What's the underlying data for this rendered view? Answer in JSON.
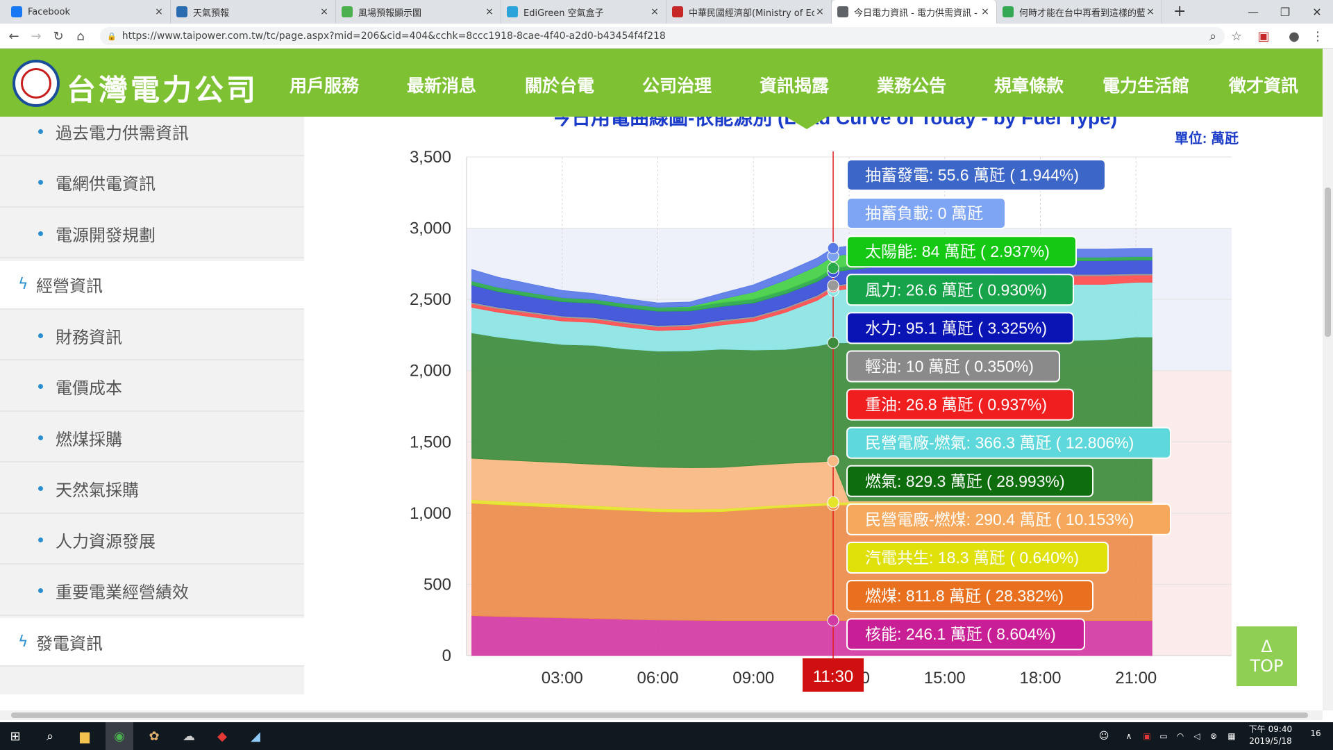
{
  "browser": {
    "tabs": [
      {
        "title": "Facebook",
        "color": "#1877f2"
      },
      {
        "title": "天氣預報",
        "color": "#2b6cb0"
      },
      {
        "title": "風場預報顯示圖",
        "color": "#4caf50"
      },
      {
        "title": "EdiGreen 空氣盒子",
        "color": "#29a3d9"
      },
      {
        "title": "中華民國經濟部(Ministry of Eco",
        "color": "#c62828"
      },
      {
        "title": "今日電力資訊 - 電力供需資訊 - 台",
        "color": "#5f6368"
      },
      {
        "title": "何時才能在台中再看到這樣的藍天",
        "color": "#34a853"
      }
    ],
    "url": "https://www.taipower.com.tw/tc/page.aspx?mid=206&cid=404&cchk=8ccc1918-8cae-4f40-a2d0-b43454f4f218",
    "new_tab": "+"
  },
  "site": {
    "brand": "台灣電力公司",
    "nav": [
      "用戶服務",
      "最新消息",
      "關於台電",
      "公司治理",
      "資訊揭露",
      "業務公告",
      "規章條款",
      "電力生活館",
      "徵才資訊"
    ]
  },
  "sidebar": {
    "items": [
      {
        "label": "過去電力供需資訊",
        "kind": "sub"
      },
      {
        "label": "電網供電資訊",
        "kind": "sub"
      },
      {
        "label": "電源開發規劃",
        "kind": "sub"
      },
      {
        "label": "經營資訊",
        "kind": "top"
      },
      {
        "label": "財務資訊",
        "kind": "sub"
      },
      {
        "label": "電價成本",
        "kind": "sub"
      },
      {
        "label": "燃煤採購",
        "kind": "sub"
      },
      {
        "label": "天然氣採購",
        "kind": "sub"
      },
      {
        "label": "人力資源發展",
        "kind": "sub"
      },
      {
        "label": "重要電業經營績效",
        "kind": "sub"
      },
      {
        "label": "發電資訊",
        "kind": "top"
      }
    ]
  },
  "chart": {
    "title_partial": "今日用電曲線圖-依能源別 (Load Curve of Today - by Fuel Type)",
    "unit": "單位: 萬瓩",
    "crosshair_label": "11:30",
    "to_top": [
      "Δ",
      "TOP"
    ]
  },
  "chart_data": {
    "type": "area",
    "stacked": true,
    "x_ticks": [
      "03:00",
      "06:00",
      "09:00",
      "12:00",
      "15:00",
      "18:00",
      "21:00"
    ],
    "y_ticks": [
      0,
      500,
      1000,
      1500,
      2000,
      2500,
      3000,
      3500
    ],
    "ylim": [
      0,
      3500
    ],
    "x": [
      "00:10",
      "01:00",
      "02:00",
      "03:00",
      "04:00",
      "05:00",
      "06:00",
      "07:00",
      "08:00",
      "09:00",
      "10:00",
      "11:00",
      "11:30",
      "12:00",
      "13:00",
      "14:00",
      "15:00",
      "16:00",
      "17:00",
      "18:00",
      "19:00",
      "20:00",
      "21:00",
      "21:30"
    ],
    "series": [
      {
        "name": "核能",
        "color": "#d23aa4",
        "values": [
          280,
          275,
          270,
          265,
          260,
          255,
          250,
          248,
          246,
          246,
          246,
          246,
          246,
          246,
          246,
          246,
          246,
          246,
          246,
          246,
          246,
          246,
          246,
          246
        ]
      },
      {
        "name": "燃煤",
        "color": "#ec8c4c",
        "values": [
          790,
          785,
          780,
          775,
          770,
          765,
          760,
          760,
          765,
          780,
          795,
          805,
          812,
          812,
          812,
          812,
          812,
          812,
          812,
          812,
          812,
          812,
          812,
          812
        ]
      },
      {
        "name": "汽電共生",
        "color": "#e4e42a",
        "values": [
          25,
          25,
          24,
          24,
          23,
          22,
          22,
          21,
          20,
          19,
          18,
          18,
          18,
          18,
          18,
          18,
          18,
          18,
          18,
          18,
          18,
          18,
          18,
          18
        ]
      },
      {
        "name": "民營電廠-燃煤",
        "color": "#f9b983",
        "values": [
          290,
          290,
          290,
          290,
          290,
          290,
          290,
          290,
          290,
          290,
          290,
          290,
          290,
          10,
          10,
          10,
          10,
          10,
          10,
          10,
          10,
          10,
          10,
          10
        ]
      },
      {
        "name": "燃氣",
        "color": "#3c8c3c",
        "values": [
          880,
          860,
          845,
          830,
          835,
          820,
          815,
          820,
          830,
          810,
          800,
          815,
          829,
          1110,
          1125,
          1130,
          1140,
          1140,
          1135,
          1130,
          1125,
          1130,
          1150,
          1150
        ]
      },
      {
        "name": "民營電廠-燃氣",
        "color": "#8ce4e4",
        "values": [
          180,
          175,
          170,
          165,
          160,
          155,
          145,
          150,
          170,
          200,
          260,
          320,
          366,
          380,
          390,
          395,
          395,
          395,
          395,
          395,
          395,
          390,
          385,
          385
        ]
      },
      {
        "name": "重油",
        "color": "#ff4d4d",
        "values": [
          25,
          25,
          25,
          25,
          25,
          25,
          25,
          25,
          25,
          25,
          25,
          26,
          27,
          27,
          27,
          27,
          28,
          45,
          55,
          60,
          60,
          60,
          50,
          50
        ]
      },
      {
        "name": "輕油",
        "color": "#999999",
        "values": [
          10,
          10,
          10,
          10,
          10,
          10,
          10,
          10,
          10,
          10,
          10,
          10,
          10,
          10,
          10,
          10,
          10,
          10,
          10,
          10,
          10,
          10,
          10,
          10
        ]
      },
      {
        "name": "水力",
        "color": "#3a4fd8",
        "values": [
          120,
          110,
          105,
          100,
          100,
          100,
          100,
          95,
          95,
          95,
          95,
          95,
          95,
          95,
          95,
          95,
          95,
          95,
          95,
          95,
          95,
          95,
          95,
          95
        ]
      },
      {
        "name": "風力",
        "color": "#2aa84a",
        "values": [
          30,
          30,
          29,
          29,
          28,
          28,
          28,
          27,
          27,
          27,
          27,
          27,
          27,
          27,
          27,
          27,
          26,
          26,
          26,
          26,
          26,
          26,
          26,
          26
        ]
      },
      {
        "name": "太陽能",
        "color": "#44d044",
        "values": [
          0,
          0,
          0,
          0,
          0,
          0,
          0,
          5,
          25,
          50,
          70,
          82,
          84,
          84,
          80,
          70,
          55,
          40,
          20,
          5,
          0,
          0,
          0,
          0
        ]
      },
      {
        "name": "抽蓄負載",
        "color": "#7ea0f0",
        "values": [
          0,
          0,
          0,
          0,
          0,
          0,
          0,
          0,
          0,
          0,
          0,
          0,
          0,
          0,
          0,
          0,
          0,
          0,
          0,
          0,
          0,
          0,
          0,
          0
        ]
      },
      {
        "name": "抽蓄發電",
        "color": "#5a7ae8",
        "values": [
          80,
          70,
          60,
          50,
          40,
          35,
          30,
          30,
          40,
          50,
          55,
          56,
          56,
          56,
          56,
          56,
          56,
          56,
          56,
          56,
          56,
          56,
          56,
          56
        ]
      }
    ],
    "tooltip": [
      {
        "text": "抽蓄發電: 55.6 萬瓩 ( 1.944%)",
        "color": "#3c66c8",
        "fg": "#ffffff"
      },
      {
        "text": "抽蓄負載: 0 萬瓩",
        "color": "#7ea4f4",
        "fg": "#ffffff"
      },
      {
        "text": "太陽能: 84 萬瓩 ( 2.937%)",
        "color": "#14c814",
        "fg": "#ffffff"
      },
      {
        "text": "風力: 26.6 萬瓩 ( 0.930%)",
        "color": "#16a34a",
        "fg": "#ffffff"
      },
      {
        "text": "水力: 95.1 萬瓩 ( 3.325%)",
        "color": "#0a14b4",
        "fg": "#ffffff"
      },
      {
        "text": "輕油: 10 萬瓩 ( 0.350%)",
        "color": "#8a8a8a",
        "fg": "#ffffff"
      },
      {
        "text": "重油: 26.8 萬瓩 ( 0.937%)",
        "color": "#f01e1e",
        "fg": "#ffffff"
      },
      {
        "text": "民營電廠-燃氣: 366.3 萬瓩 ( 12.806%)",
        "color": "#5fd8dc",
        "fg": "#ffffff"
      },
      {
        "text": "燃氣: 829.3 萬瓩 ( 28.993%)",
        "color": "#0e6e0e",
        "fg": "#ffffff"
      },
      {
        "text": "民營電廠-燃煤: 290.4 萬瓩 ( 10.153%)",
        "color": "#f6a85c",
        "fg": "#ffffff"
      },
      {
        "text": "汽電共生: 18.3 萬瓩 ( 0.640%)",
        "color": "#e0e00a",
        "fg": "#ffffff"
      },
      {
        "text": "燃煤: 811.8 萬瓩 ( 28.382%)",
        "color": "#e8701e",
        "fg": "#ffffff"
      },
      {
        "text": "核能: 246.1 萬瓩 ( 8.604%)",
        "color": "#c81e96",
        "fg": "#ffffff"
      }
    ]
  },
  "taskbar": {
    "time": "下午 09:40",
    "date": "2019/5/18",
    "notifications": "16"
  }
}
